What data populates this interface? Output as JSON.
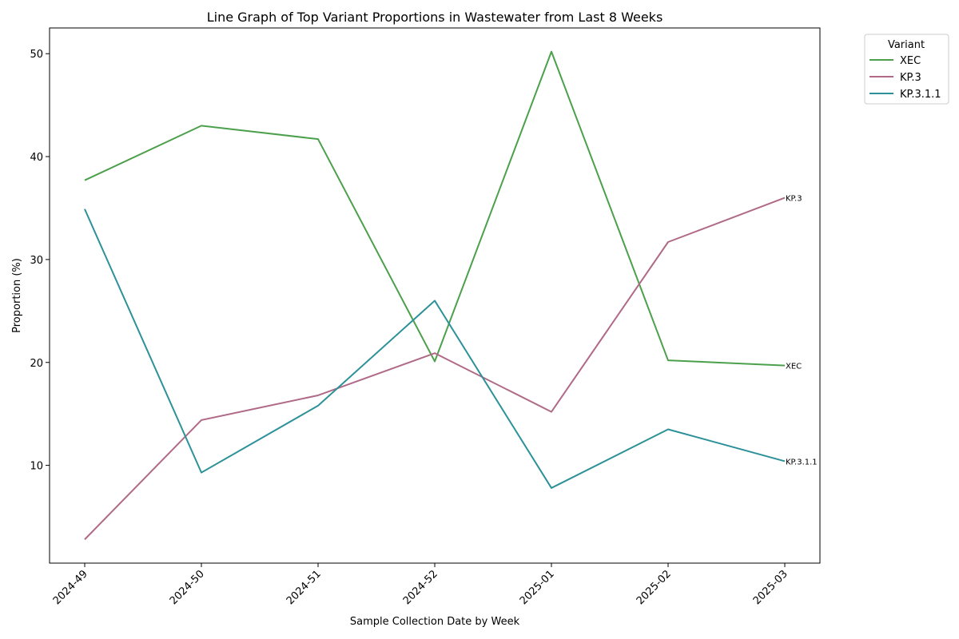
{
  "chart_data": {
    "type": "line",
    "title": "Line Graph of Top Variant Proportions in Wastewater from Last 8 Weeks",
    "xlabel": "Sample Collection Date by Week",
    "ylabel": "Proportion (%)",
    "categories": [
      "2024-49",
      "2024-50",
      "2024-51",
      "2024-52",
      "2025-01",
      "2025-02",
      "2025-03"
    ],
    "ylim": [
      0.5,
      52.5
    ],
    "yticks": [
      10,
      20,
      30,
      40,
      50
    ],
    "grid": false,
    "legend": {
      "title": "Variant",
      "position": "outside-top-right"
    },
    "series": [
      {
        "name": "XEC",
        "color": "#4ca04c",
        "values": [
          37.7,
          43.0,
          41.7,
          20.1,
          50.2,
          20.2,
          19.7
        ]
      },
      {
        "name": "KP.3",
        "color": "#b06a87",
        "values": [
          2.8,
          14.4,
          16.8,
          20.9,
          15.2,
          31.7,
          36.0
        ]
      },
      {
        "name": "KP.3.1.1",
        "color": "#2d9199",
        "values": [
          34.9,
          9.3,
          15.8,
          26.0,
          7.8,
          13.5,
          10.4
        ]
      }
    ]
  }
}
